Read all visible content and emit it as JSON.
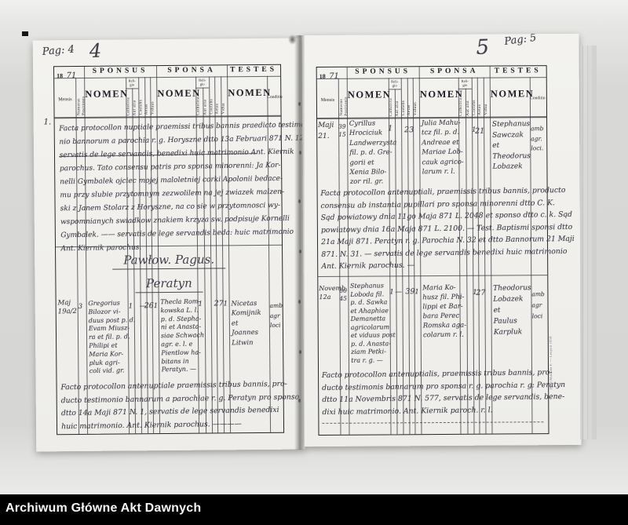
{
  "archive_bar": {
    "title": "Archiwum Główne Akt Dawnych"
  },
  "header": {
    "year_print": "18",
    "sponsus": "SPONSUS",
    "sponsa": "SPONSA",
    "testes": "TESTES",
    "nomen": "NOMEN",
    "conditio": "Conditio",
    "mensis": "Mensis",
    "numerus": "Numerus Positionis",
    "religio_top": "Reli-",
    "religio_bottom": "gio",
    "catholica": "Catholica",
    "aut_alia": "Aut alia",
    "coelebs": "Coelebs",
    "aetas": "Aetas",
    "viduus": "Viduus",
    "vidua": "Vidua"
  },
  "left": {
    "pag_label": "Pag: 4",
    "big_number": "4",
    "year_hand": "71",
    "margin_no": "1.",
    "para1": [
      "Facta protocollon nuptiale praemissi tribus bannis praedicto testimo-",
      "nio bannorum a parochia r. g. Horyszne dtto 13a Februari 871 N. 12",
      "servatis de lege servandis, benedixi huic matrimonio Ant. Kiernik",
      "parochus. Tato consensu patris pro sponsa minorenni: Ja Kor-",
      "nelli Gymbalek ojciec mojej maloletniej corki Apolonii bedace-",
      "mu przy slubie przytomnym zezwolilem na jej zwiazek malzen-",
      "ski z Janem Stolarz z Horyszne, na co sie w przytomnosci wy-",
      "wspomnianych swiadkow znakiem krzyza sw. podpisuje Kornelli",
      "Gymbalek. ——  servatis de lege servandis beda: huic matrimonio",
      "Ant. Kiernik parochus."
    ],
    "heading1": "Pawłow. Pagus.",
    "heading2": "Peratyn",
    "entry": {
      "date": [
        "Maj",
        "19a/2"
      ],
      "numerus": [
        "3"
      ],
      "sponsus": [
        "Gregorius",
        "Bilozor vi-",
        "duus post p. d.",
        "Evam Miusz-",
        "ra et fil. p. d.",
        "Philipi et",
        "Maria Kor-",
        "pluk agri-",
        "coli vid. gr."
      ],
      "sflags": {
        "cath": "1",
        "coel": "—",
        "aetas": "26",
        "vid": "1"
      },
      "sponsa": [
        "Thecla Rom-",
        "kowska L. l.",
        "p. d. Stepha-",
        "ni et Anasta-",
        "siae Schwach",
        "agr. e. l. e",
        "Pientlow ha-",
        "bitans in",
        "Peratyn. —"
      ],
      "bflags": {
        "cath": "1",
        "aetas": "27",
        "vid": "1"
      },
      "testes": [
        "Nicetas",
        "Komijnik",
        "et",
        "Joannes",
        "Litwin"
      ],
      "conditio": [
        "amb",
        "agr",
        "loci"
      ]
    },
    "note": [
      "Facto protocollon antenuptiale praemissis tribus bannis, pro-",
      "ducto testimonio bannarum a parochiae r. g. Peratyn pro sponso",
      "dtto 14a Maji 871 N. 1,  servatis de lege servandis benedixi",
      "huic matrimonio. Ant. Kiernik parochus. ————"
    ]
  },
  "right": {
    "pag_label": "Pag: 5",
    "big_number": "5",
    "year_hand": "71",
    "entry1": {
      "date": [
        "Maji",
        "21."
      ],
      "numerus": [
        "39",
        "15"
      ],
      "sponsus": [
        "Cyrillus",
        "Hrociciuk",
        "Landwerzysta",
        "fil. p. d. Gre-",
        "gorii et",
        "Xenia Bilo-",
        "zor ril. gr."
      ],
      "sflags": {
        "cath": "1",
        "aetas": "23"
      },
      "sponsa": [
        "Julia Mahu-",
        "tcz fil. p. d.",
        "Andreae et",
        "Mariae Lob-",
        "cauk agrico-",
        "larum r. l."
      ],
      "bflags": {
        "coel": "1",
        "aetas": "21"
      },
      "testes": [
        "Stephanus",
        "Sawczak",
        "et",
        "Theodorus",
        "Lobazek"
      ],
      "conditio": [
        "amb",
        "agr.",
        "loci."
      ]
    },
    "note1": [
      "Facta protocollon antenuptiali, praemissis tribus bannis, producto",
      "consensu ab instantia pupillari pro sponsa minorenni dtto C. K.",
      "Sąd powiatowy dnia 11go Maja 871 L. 2048 et sponso dtto c. k. Sąd",
      "powiatowy dnia 16a Maja 871 L. 2100. — Test. Baptismi sponsi dtto",
      "21a Maji 871. Peratyn r. g. Parochia N. 32 et dtto Bannorum 21 Maji",
      "871. N. 31. — servatis de lege servandis benedixi huic matrimonio",
      "Ant. Kiernik parochus. —"
    ],
    "entry2": {
      "date": [
        "Novemb.",
        "12a"
      ],
      "numerus": [
        "66",
        "45"
      ],
      "sponsus": [
        "Stephanus",
        "Loboda fil.",
        "p. d. Sawka",
        "et Ahaphiae",
        "Demanetta",
        "agricolarum",
        "et viduus post",
        "p. d. Anasta-",
        "ziam Petki-",
        "tra r. g. —"
      ],
      "sflags": {
        "cath": "1",
        "aut": "—",
        "aetas": "39",
        "vid": "1"
      },
      "sponsa": [
        "Maria Ko-",
        "husz fil. Phi-",
        "lippi et Bar-",
        "bara Perec",
        "Romska aga-",
        "colarum r. l."
      ],
      "bflags": {
        "coel": "1",
        "aetas": "27"
      },
      "testes": [
        "Theodorus",
        "Lobazek",
        "et",
        "Paulus",
        "Karpluk"
      ],
      "conditio": [
        "amb",
        "agr",
        "loci"
      ]
    },
    "note2": [
      "Facto protocollon antenuptialis, praemissis tribus bannis, pro-",
      "ducto testimonis bannarum pro sponsa r. g. parochia r. g: Peratyn",
      "dtto 11a Novembris 871 N. 577, servatis de lege servandis, bene-",
      "dixi huic matrimonio. Ant. Kiernik paroch. r. l."
    ],
    "imprint": "Typis Machala F. — Leopoli 1858"
  }
}
